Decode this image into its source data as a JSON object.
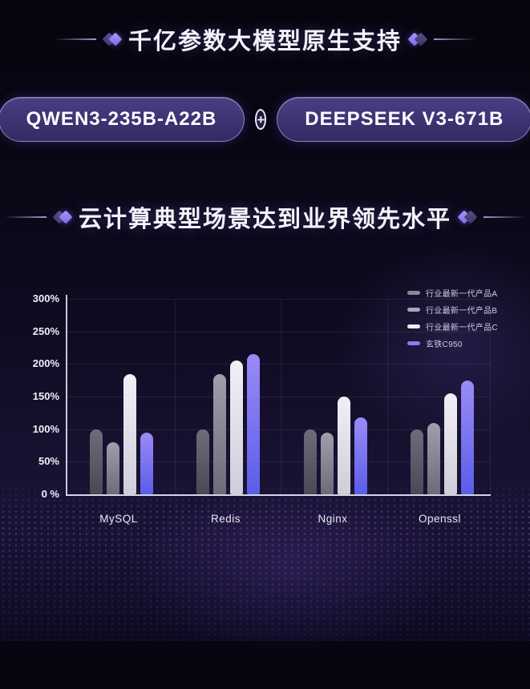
{
  "title1": {
    "text": "千亿参数大模型原生支持"
  },
  "badges": {
    "left": "QWEN3-235B-A22B",
    "plus": "+",
    "right": "DEEPSEEK V3-671B"
  },
  "title2": {
    "text": "云计算典型场景达到业界领先水平"
  },
  "colors": {
    "accent_purple": "#8c7cf3",
    "badge_fill": "#3e3272",
    "badge_border": "#a89ede",
    "background_dark": "#0a0716"
  },
  "chart_data": {
    "type": "bar",
    "title": "",
    "xlabel": "",
    "ylabel": "",
    "categories": [
      "MySQL",
      "Redis",
      "Nginx",
      "Openssl"
    ],
    "series": [
      {
        "name": "行业最新一代产品A",
        "legend_color": "#8b8995",
        "gradient_top": "#6f6c7a",
        "gradient_bottom": "#4b4856",
        "values": [
          100,
          100,
          100,
          100
        ]
      },
      {
        "name": "行业最新一代产品B",
        "legend_color": "#a7a5b1",
        "gradient_top": "#a19eac",
        "gradient_bottom": "#6e6b79",
        "values": [
          80,
          185,
          95,
          110
        ]
      },
      {
        "name": "行业最新一代产品C",
        "legend_color": "#edebf3",
        "gradient_top": "#f1eff6",
        "gradient_bottom": "#cfcdd8",
        "values": [
          185,
          205,
          150,
          155
        ]
      },
      {
        "name": "玄铁C950",
        "legend_color": "#8c7cf3",
        "gradient_top": "#9a8bf6",
        "gradient_bottom": "#5a5de9",
        "values": [
          95,
          215,
          118,
          175
        ]
      }
    ],
    "yticks": [
      {
        "value": 0,
        "label": "0 %"
      },
      {
        "value": 50,
        "label": "50%"
      },
      {
        "value": 100,
        "label": "100%"
      },
      {
        "value": 150,
        "label": "150%"
      },
      {
        "value": 200,
        "label": "200%"
      },
      {
        "value": 250,
        "label": "250%"
      },
      {
        "value": 300,
        "label": "300%"
      }
    ],
    "ylim": [
      0,
      307
    ],
    "grid": true,
    "legend_position": "top-right"
  }
}
